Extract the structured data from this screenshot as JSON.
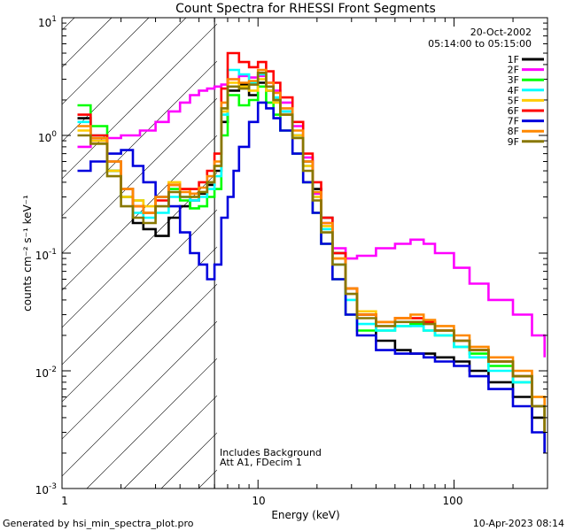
{
  "chart_data": {
    "type": "line",
    "title": "Count Spectra for RHESSI Front Segments",
    "xlabel": "Energy (keV)",
    "ylabel": "counts cm⁻² s⁻¹ keV⁻¹",
    "x_scale": "log",
    "y_scale": "log",
    "xlim": [
      1,
      300
    ],
    "ylim": [
      0.001,
      10
    ],
    "x_ticks": [
      {
        "value": 1,
        "label": "1"
      },
      {
        "value": 10,
        "label": "10"
      },
      {
        "value": 100,
        "label": "100"
      }
    ],
    "y_ticks": [
      {
        "value": 10,
        "base": "10",
        "exp": "1"
      },
      {
        "value": 1,
        "base": "10",
        "exp": "0"
      },
      {
        "value": 0.1,
        "base": "10",
        "exp": "-1"
      },
      {
        "value": 0.01,
        "base": "10",
        "exp": "-2"
      },
      {
        "value": 0.001,
        "base": "10",
        "exp": "-3"
      }
    ],
    "date": "20-Oct-2002",
    "time_range": "05:14:00 to 05:15:00",
    "attenuator_energy_keV": 6,
    "annotations": [
      "Includes Background",
      "Att A1, FDecim 1"
    ],
    "series": [
      {
        "name": "1F",
        "color": "#000000",
        "x": [
          1.2,
          1.4,
          1.7,
          2.0,
          2.3,
          2.6,
          3.0,
          3.5,
          4.0,
          4.5,
          5.0,
          5.5,
          6.0,
          6.5,
          7.0,
          8.0,
          9.0,
          10.0,
          11.0,
          12.0,
          13.0,
          15.0,
          17.0,
          19.0,
          21.0,
          24.0,
          28.0,
          32.0,
          40.0,
          50.0,
          60.0,
          70.0,
          80.0,
          100.0,
          120.0,
          150.0,
          200.0,
          250.0,
          290.0
        ],
        "y": [
          1.4,
          0.9,
          0.5,
          0.3,
          0.18,
          0.16,
          0.14,
          0.2,
          0.25,
          0.28,
          0.32,
          0.38,
          0.5,
          1.3,
          2.4,
          2.7,
          2.2,
          2.8,
          2.4,
          2.0,
          1.6,
          1.0,
          0.6,
          0.35,
          0.2,
          0.1,
          0.05,
          0.03,
          0.018,
          0.015,
          0.014,
          0.014,
          0.013,
          0.012,
          0.01,
          0.008,
          0.006,
          0.004,
          0.002
        ]
      },
      {
        "name": "2F",
        "color": "#ff00ff",
        "x": [
          1.2,
          1.4,
          1.7,
          2.0,
          2.5,
          3.0,
          3.5,
          4.0,
          4.5,
          5.0,
          5.5,
          6.0,
          6.5,
          7.0,
          8.0,
          9.0,
          10.0,
          11.0,
          12.0,
          13.0,
          15.0,
          17.0,
          19.0,
          21.0,
          24.0,
          28.0,
          32.0,
          40.0,
          50.0,
          60.0,
          70.0,
          80.0,
          100.0,
          120.0,
          150.0,
          200.0,
          250.0,
          290.0
        ],
        "y": [
          0.8,
          0.9,
          0.95,
          1.0,
          1.1,
          1.3,
          1.6,
          1.9,
          2.2,
          2.4,
          2.5,
          2.6,
          2.7,
          3.0,
          3.2,
          3.1,
          3.2,
          2.8,
          2.4,
          1.9,
          1.2,
          0.65,
          0.32,
          0.18,
          0.11,
          0.09,
          0.095,
          0.11,
          0.12,
          0.13,
          0.12,
          0.1,
          0.075,
          0.055,
          0.04,
          0.03,
          0.02,
          0.013
        ]
      },
      {
        "name": "3F",
        "color": "#00ff00",
        "x": [
          1.2,
          1.4,
          1.7,
          2.0,
          2.3,
          2.6,
          3.0,
          3.5,
          4.0,
          4.5,
          5.0,
          5.5,
          6.0,
          6.5,
          7.0,
          8.0,
          9.0,
          10.0,
          11.0,
          12.0,
          13.0,
          15.0,
          17.0,
          19.0,
          21.0,
          24.0,
          28.0,
          32.0,
          40.0,
          50.0,
          60.0,
          70.0,
          80.0,
          100.0,
          120.0,
          150.0,
          200.0,
          250.0,
          290.0
        ],
        "y": [
          1.8,
          1.2,
          0.5,
          0.3,
          0.28,
          0.22,
          0.3,
          0.35,
          0.28,
          0.24,
          0.25,
          0.3,
          0.35,
          1.0,
          2.2,
          1.8,
          2.0,
          2.6,
          1.9,
          1.5,
          1.1,
          0.7,
          0.4,
          0.22,
          0.12,
          0.06,
          0.03,
          0.022,
          0.022,
          0.024,
          0.025,
          0.022,
          0.02,
          0.016,
          0.014,
          0.011,
          0.008,
          0.005,
          0.003
        ]
      },
      {
        "name": "4F",
        "color": "#00ffff",
        "x": [
          1.2,
          1.4,
          1.7,
          2.0,
          2.3,
          2.6,
          3.0,
          3.5,
          4.0,
          4.5,
          5.0,
          5.5,
          6.0,
          6.5,
          7.0,
          8.0,
          9.0,
          10.0,
          11.0,
          12.0,
          13.0,
          15.0,
          17.0,
          19.0,
          21.0,
          24.0,
          28.0,
          32.0,
          40.0,
          50.0,
          60.0,
          70.0,
          80.0,
          100.0,
          120.0,
          150.0,
          200.0,
          250.0,
          290.0
        ],
        "y": [
          1.3,
          1.0,
          0.6,
          0.35,
          0.22,
          0.2,
          0.22,
          0.3,
          0.3,
          0.28,
          0.3,
          0.35,
          0.45,
          1.5,
          3.6,
          3.3,
          2.8,
          3.3,
          2.6,
          2.1,
          1.6,
          1.0,
          0.55,
          0.3,
          0.16,
          0.08,
          0.04,
          0.025,
          0.022,
          0.024,
          0.024,
          0.022,
          0.02,
          0.016,
          0.013,
          0.01,
          0.008,
          0.005,
          0.003
        ]
      },
      {
        "name": "5F",
        "color": "#ffcc00",
        "x": [
          1.2,
          1.4,
          1.7,
          2.0,
          2.3,
          2.6,
          3.0,
          3.5,
          4.0,
          4.5,
          5.0,
          5.5,
          6.0,
          6.5,
          7.0,
          8.0,
          9.0,
          10.0,
          11.0,
          12.0,
          13.0,
          15.0,
          17.0,
          19.0,
          21.0,
          24.0,
          28.0,
          32.0,
          40.0,
          50.0,
          60.0,
          70.0,
          80.0,
          100.0,
          120.0,
          150.0,
          200.0,
          250.0,
          290.0
        ],
        "y": [
          1.1,
          0.9,
          0.5,
          0.3,
          0.28,
          0.25,
          0.3,
          0.4,
          0.35,
          0.3,
          0.33,
          0.4,
          0.55,
          1.6,
          2.8,
          2.6,
          2.4,
          3.0,
          2.4,
          1.9,
          1.5,
          1.0,
          0.55,
          0.3,
          0.17,
          0.09,
          0.05,
          0.032,
          0.026,
          0.028,
          0.028,
          0.026,
          0.022,
          0.018,
          0.015,
          0.012,
          0.009,
          0.006,
          0.003
        ]
      },
      {
        "name": "6F",
        "color": "#ff0000",
        "x": [
          1.2,
          1.4,
          1.7,
          2.0,
          2.3,
          2.6,
          3.0,
          3.5,
          4.0,
          4.5,
          5.0,
          5.5,
          6.0,
          6.5,
          7.0,
          8.0,
          9.0,
          10.0,
          11.0,
          12.0,
          13.0,
          15.0,
          17.0,
          19.0,
          21.0,
          24.0,
          28.0,
          32.0,
          40.0,
          50.0,
          60.0,
          70.0,
          80.0,
          100.0,
          120.0,
          150.0,
          200.0,
          250.0,
          290.0
        ],
        "y": [
          1.5,
          1.0,
          0.6,
          0.35,
          0.25,
          0.22,
          0.28,
          0.38,
          0.35,
          0.35,
          0.4,
          0.5,
          0.7,
          2.5,
          5.0,
          4.2,
          3.8,
          4.2,
          3.5,
          2.8,
          2.1,
          1.3,
          0.7,
          0.4,
          0.2,
          0.1,
          0.05,
          0.03,
          0.026,
          0.028,
          0.028,
          0.026,
          0.022,
          0.018,
          0.015,
          0.012,
          0.009,
          0.005,
          0.003
        ]
      },
      {
        "name": "7F",
        "color": "#0000dd",
        "x": [
          1.2,
          1.4,
          1.7,
          2.0,
          2.3,
          2.6,
          3.0,
          3.5,
          4.0,
          4.5,
          5.0,
          5.5,
          6.0,
          6.5,
          7.0,
          7.5,
          8.0,
          9.0,
          10.0,
          11.0,
          12.0,
          13.0,
          15.0,
          17.0,
          19.0,
          21.0,
          24.0,
          28.0,
          32.0,
          40.0,
          50.0,
          60.0,
          70.0,
          80.0,
          100.0,
          120.0,
          150.0,
          200.0,
          250.0,
          290.0
        ],
        "y": [
          0.5,
          0.6,
          0.7,
          0.75,
          0.55,
          0.4,
          0.3,
          0.25,
          0.15,
          0.1,
          0.08,
          0.06,
          0.08,
          0.2,
          0.3,
          0.5,
          0.8,
          1.3,
          1.9,
          1.7,
          1.4,
          1.1,
          0.7,
          0.4,
          0.22,
          0.12,
          0.06,
          0.03,
          0.02,
          0.015,
          0.014,
          0.014,
          0.013,
          0.012,
          0.011,
          0.009,
          0.007,
          0.005,
          0.003,
          0.002
        ]
      },
      {
        "name": "8F",
        "color": "#ff8800",
        "x": [
          1.2,
          1.4,
          1.7,
          2.0,
          2.3,
          2.6,
          3.0,
          3.5,
          4.0,
          4.5,
          5.0,
          5.5,
          6.0,
          6.5,
          7.0,
          8.0,
          9.0,
          10.0,
          11.0,
          12.0,
          13.0,
          15.0,
          17.0,
          19.0,
          21.0,
          24.0,
          28.0,
          32.0,
          40.0,
          50.0,
          60.0,
          70.0,
          80.0,
          100.0,
          120.0,
          150.0,
          200.0,
          250.0,
          290.0
        ],
        "y": [
          1.2,
          0.95,
          0.6,
          0.35,
          0.25,
          0.22,
          0.3,
          0.38,
          0.33,
          0.32,
          0.36,
          0.45,
          0.6,
          1.9,
          3.0,
          2.8,
          2.9,
          3.6,
          2.8,
          2.3,
          1.7,
          1.1,
          0.6,
          0.33,
          0.18,
          0.09,
          0.05,
          0.03,
          0.026,
          0.028,
          0.03,
          0.027,
          0.024,
          0.02,
          0.016,
          0.013,
          0.01,
          0.006,
          0.003
        ]
      },
      {
        "name": "9F",
        "color": "#887700",
        "x": [
          1.2,
          1.4,
          1.7,
          2.0,
          2.3,
          2.6,
          3.0,
          3.5,
          4.0,
          4.5,
          5.0,
          5.5,
          6.0,
          6.5,
          7.0,
          8.0,
          9.0,
          10.0,
          11.0,
          12.0,
          13.0,
          15.0,
          17.0,
          19.0,
          21.0,
          24.0,
          28.0,
          32.0,
          40.0,
          50.0,
          60.0,
          70.0,
          80.0,
          100.0,
          120.0,
          150.0,
          200.0,
          250.0,
          290.0
        ],
        "y": [
          1.0,
          0.85,
          0.45,
          0.25,
          0.2,
          0.18,
          0.25,
          0.33,
          0.3,
          0.3,
          0.33,
          0.4,
          0.55,
          1.7,
          2.6,
          2.5,
          2.7,
          3.4,
          2.6,
          2.0,
          1.5,
          0.95,
          0.5,
          0.28,
          0.15,
          0.08,
          0.045,
          0.028,
          0.024,
          0.026,
          0.026,
          0.025,
          0.022,
          0.018,
          0.015,
          0.012,
          0.009,
          0.005,
          0.003
        ]
      }
    ]
  },
  "footer": {
    "generated_by": "Generated by hsi_min_spectra_plot.pro",
    "timestamp": "10-Apr-2023 08:14"
  }
}
